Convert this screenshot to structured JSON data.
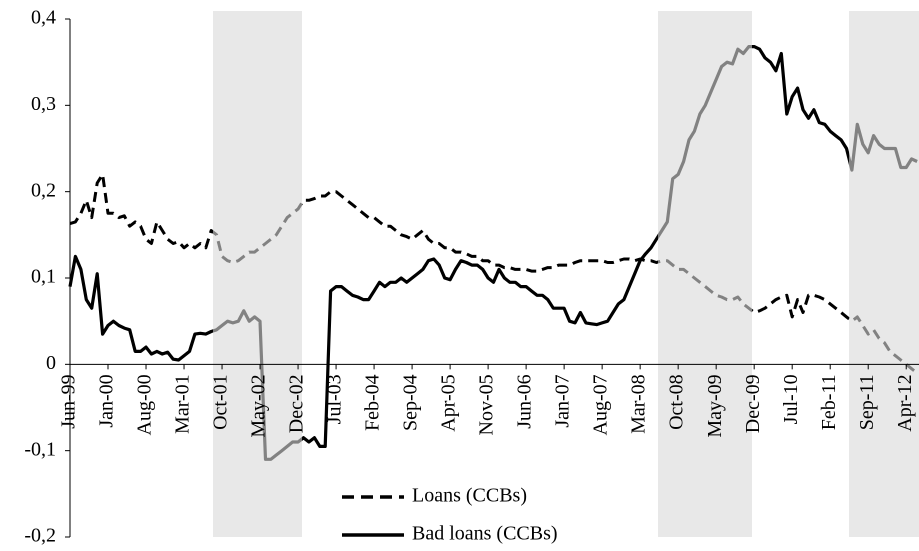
{
  "chart_data": {
    "type": "line",
    "categories": [
      "Jun-99",
      null,
      null,
      null,
      null,
      null,
      null,
      "Jan-00",
      null,
      null,
      null,
      null,
      null,
      null,
      "Aug-00",
      null,
      null,
      null,
      null,
      null,
      null,
      "Mar-01",
      null,
      null,
      null,
      null,
      null,
      null,
      "Oct-01",
      null,
      null,
      null,
      null,
      null,
      null,
      "May-02",
      null,
      null,
      null,
      null,
      null,
      null,
      "Dec-02",
      null,
      null,
      null,
      null,
      null,
      null,
      "Jul-03",
      null,
      null,
      null,
      null,
      null,
      null,
      "Feb-04",
      null,
      null,
      null,
      null,
      null,
      null,
      "Sep-04",
      null,
      null,
      null,
      null,
      null,
      null,
      "Apr-05",
      null,
      null,
      null,
      null,
      null,
      null,
      "Nov-05",
      null,
      null,
      null,
      null,
      null,
      null,
      "Jun-06",
      null,
      null,
      null,
      null,
      null,
      null,
      "Jan-07",
      null,
      null,
      null,
      null,
      null,
      null,
      "Aug-07",
      null,
      null,
      null,
      null,
      null,
      null,
      "Mar-08",
      null,
      null,
      null,
      null,
      null,
      null,
      "Oct-08",
      null,
      null,
      null,
      null,
      null,
      null,
      "May-09",
      null,
      null,
      null,
      null,
      null,
      null,
      "Dec-09",
      null,
      null,
      null,
      null,
      null,
      null,
      "Jul-10",
      null,
      null,
      null,
      null,
      null,
      null,
      "Feb-11",
      null,
      null,
      null,
      null,
      null,
      null,
      "Sep-11",
      null,
      null,
      null,
      null,
      null,
      null,
      "Apr-12",
      null,
      null
    ],
    "series": [
      {
        "name": "Loans (CCBs)",
        "color": "#000000",
        "dash": true,
        "values": [
          0.163,
          0.165,
          0.175,
          0.19,
          0.17,
          0.21,
          0.22,
          0.175,
          0.175,
          0.17,
          0.172,
          0.16,
          0.165,
          0.16,
          0.145,
          0.14,
          0.165,
          0.155,
          0.145,
          0.14,
          0.142,
          0.135,
          0.14,
          0.135,
          0.14,
          0.135,
          0.155,
          0.15,
          0.125,
          0.12,
          0.118,
          0.12,
          0.125,
          0.13,
          0.13,
          0.135,
          0.14,
          0.145,
          0.15,
          0.16,
          0.17,
          0.175,
          0.18,
          0.19,
          0.19,
          0.192,
          0.195,
          0.195,
          0.2,
          0.2,
          0.195,
          0.19,
          0.185,
          0.18,
          0.175,
          0.17,
          0.17,
          0.165,
          0.16,
          0.16,
          0.155,
          0.15,
          0.148,
          0.145,
          0.15,
          0.155,
          0.145,
          0.14,
          0.14,
          0.135,
          0.135,
          0.13,
          0.13,
          0.128,
          0.125,
          0.125,
          0.12,
          0.12,
          0.115,
          0.115,
          0.112,
          0.112,
          0.11,
          0.11,
          0.11,
          0.108,
          0.108,
          0.11,
          0.112,
          0.112,
          0.115,
          0.115,
          0.115,
          0.118,
          0.12,
          0.12,
          0.12,
          0.12,
          0.12,
          0.118,
          0.118,
          0.12,
          0.122,
          0.122,
          0.12,
          0.122,
          0.12,
          0.12,
          0.118,
          0.12,
          0.12,
          0.115,
          0.11,
          0.11,
          0.105,
          0.1,
          0.095,
          0.09,
          0.085,
          0.08,
          0.078,
          0.075,
          0.075,
          0.078,
          0.07,
          0.065,
          0.06,
          0.062,
          0.065,
          0.07,
          0.075,
          0.078,
          0.08,
          0.055,
          0.075,
          0.06,
          0.08,
          0.08,
          0.078,
          0.075,
          0.07,
          0.065,
          0.06,
          0.055,
          0.05,
          0.055,
          0.045,
          0.035,
          0.04,
          0.03,
          0.025,
          0.015,
          0.01,
          0.005,
          0,
          -0.005,
          -0.01
        ]
      },
      {
        "name": "Bad loans (CCBs)",
        "color": "#000000",
        "dash": false,
        "values": [
          0.09,
          0.125,
          0.11,
          0.075,
          0.065,
          0.105,
          0.035,
          0.045,
          0.05,
          0.045,
          0.042,
          0.04,
          0.015,
          0.015,
          0.02,
          0.012,
          0.015,
          0.012,
          0.014,
          0.006,
          0.005,
          0.01,
          0.015,
          0.035,
          0.036,
          0.035,
          0.038,
          0.04,
          0.045,
          0.05,
          0.048,
          0.05,
          0.062,
          0.05,
          0.055,
          0.05,
          -0.11,
          -0.11,
          -0.105,
          -0.1,
          -0.095,
          -0.09,
          -0.09,
          -0.085,
          -0.09,
          -0.085,
          -0.095,
          -0.095,
          0.085,
          0.09,
          0.09,
          0.085,
          0.08,
          0.078,
          0.075,
          0.075,
          0.085,
          0.095,
          0.09,
          0.095,
          0.095,
          0.1,
          0.095,
          0.1,
          0.105,
          0.11,
          0.12,
          0.122,
          0.115,
          0.1,
          0.098,
          0.11,
          0.12,
          0.118,
          0.115,
          0.115,
          0.11,
          0.1,
          0.095,
          0.11,
          0.1,
          0.095,
          0.095,
          0.09,
          0.09,
          0.085,
          0.08,
          0.08,
          0.075,
          0.065,
          0.065,
          0.065,
          0.05,
          0.048,
          0.06,
          0.048,
          0.047,
          0.046,
          0.048,
          0.05,
          0.06,
          0.07,
          0.075,
          0.09,
          0.105,
          0.12,
          0.128,
          0.135,
          0.145,
          0.155,
          0.165,
          0.215,
          0.22,
          0.235,
          0.26,
          0.27,
          0.29,
          0.3,
          0.315,
          0.33,
          0.345,
          0.35,
          0.348,
          0.365,
          0.36,
          0.368,
          0.368,
          0.365,
          0.355,
          0.35,
          0.34,
          0.36,
          0.29,
          0.31,
          0.32,
          0.295,
          0.285,
          0.295,
          0.28,
          0.278,
          0.27,
          0.265,
          0.26,
          0.25,
          0.225,
          0.278,
          0.255,
          0.245,
          0.265,
          0.255,
          0.25,
          0.25,
          0.25,
          0.228,
          0.228,
          0.238,
          0.235
        ]
      }
    ],
    "ylim": [
      -0.2,
      0.4
    ],
    "yticks": [
      {
        "value": -0.2,
        "label": "-0,2"
      },
      {
        "value": -0.1,
        "label": "-0,1"
      },
      {
        "value": 0,
        "label": "0"
      },
      {
        "value": 0.1,
        "label": "0,1"
      },
      {
        "value": 0.2,
        "label": "0,2"
      },
      {
        "value": 0.3,
        "label": "0,3"
      },
      {
        "value": 0.4,
        "label": "0,4"
      }
    ],
    "grid": false
  }
}
